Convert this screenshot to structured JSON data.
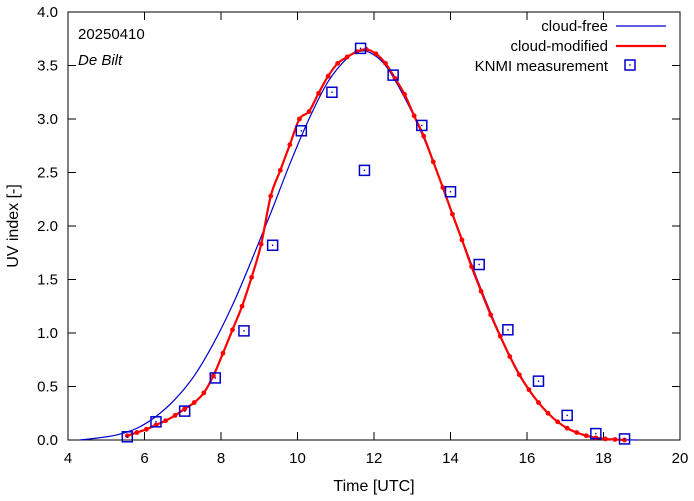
{
  "chart_data": {
    "type": "line",
    "title": "",
    "xlabel": "Time  [UTC]",
    "ylabel": "UV index  [-]",
    "xlim": [
      4,
      20
    ],
    "ylim": [
      0,
      4
    ],
    "xticks": [
      4,
      6,
      8,
      10,
      12,
      14,
      16,
      18,
      20
    ],
    "yticks": [
      0.0,
      0.5,
      1.0,
      1.5,
      2.0,
      2.5,
      3.0,
      3.5,
      4.0
    ],
    "xtick_labels": [
      "4",
      "6",
      "8",
      "10",
      "12",
      "14",
      "16",
      "18",
      "20"
    ],
    "ytick_labels": [
      "0.0",
      "0.5",
      "1.0",
      "1.5",
      "2.0",
      "2.5",
      "3.0",
      "3.5",
      "4.0"
    ],
    "grid": false,
    "legend_position": "top-right",
    "annotations": {
      "date": "20250410",
      "location": "De Bilt"
    },
    "series": [
      {
        "name": "cloud-free",
        "style": "line",
        "color": "#0000cc",
        "x": [
          4.3,
          4.8,
          5.3,
          5.8,
          6.3,
          6.8,
          7.3,
          7.8,
          8.3,
          8.8,
          9.3,
          9.8,
          10.3,
          10.8,
          11.3,
          11.6,
          11.9,
          12.3,
          12.8,
          13.3,
          13.8,
          14.3,
          14.8,
          15.3,
          15.8,
          16.3,
          16.8,
          17.3,
          17.8,
          18.3,
          18.9
        ],
        "y": [
          0.0,
          0.02,
          0.05,
          0.11,
          0.22,
          0.38,
          0.6,
          0.9,
          1.26,
          1.68,
          2.12,
          2.58,
          3.0,
          3.35,
          3.57,
          3.63,
          3.62,
          3.5,
          3.2,
          2.82,
          2.36,
          1.88,
          1.41,
          0.98,
          0.62,
          0.35,
          0.17,
          0.07,
          0.02,
          0.005,
          0.0
        ]
      },
      {
        "name": "cloud-modified",
        "style": "line+dots",
        "color": "#ff0000",
        "x": [
          5.55,
          5.8,
          6.05,
          6.3,
          6.55,
          6.8,
          7.05,
          7.3,
          7.55,
          7.8,
          8.05,
          8.3,
          8.55,
          8.8,
          9.05,
          9.3,
          9.55,
          9.8,
          10.05,
          10.3,
          10.55,
          10.8,
          11.05,
          11.3,
          11.55,
          11.8,
          12.05,
          12.3,
          12.55,
          12.8,
          13.05,
          13.3,
          13.55,
          13.8,
          14.05,
          14.3,
          14.55,
          14.8,
          15.05,
          15.3,
          15.55,
          15.8,
          16.05,
          16.3,
          16.55,
          16.8,
          17.05,
          17.3,
          17.55,
          17.8,
          18.05,
          18.3,
          18.55
        ],
        "y": [
          0.04,
          0.07,
          0.1,
          0.14,
          0.18,
          0.23,
          0.29,
          0.35,
          0.44,
          0.6,
          0.81,
          1.03,
          1.25,
          1.52,
          1.83,
          2.28,
          2.52,
          2.76,
          3.0,
          3.07,
          3.24,
          3.4,
          3.52,
          3.58,
          3.63,
          3.65,
          3.61,
          3.52,
          3.38,
          3.23,
          3.03,
          2.84,
          2.6,
          2.36,
          2.11,
          1.87,
          1.62,
          1.39,
          1.17,
          0.97,
          0.78,
          0.61,
          0.47,
          0.35,
          0.25,
          0.17,
          0.11,
          0.07,
          0.04,
          0.02,
          0.01,
          0.005,
          0.0
        ]
      },
      {
        "name": "KNMI measurement",
        "style": "markers",
        "color": "#0000cc",
        "x": [
          5.55,
          6.3,
          7.05,
          7.85,
          8.6,
          9.35,
          10.1,
          10.9,
          11.65,
          11.75,
          12.5,
          13.25,
          14.0,
          14.75,
          15.5,
          16.3,
          17.05,
          17.8,
          18.55
        ],
        "y": [
          0.03,
          0.17,
          0.27,
          0.58,
          1.02,
          1.82,
          2.89,
          3.25,
          3.66,
          2.52,
          3.41,
          2.94,
          2.32,
          1.64,
          1.03,
          0.55,
          0.23,
          0.06,
          0.01
        ]
      }
    ]
  }
}
